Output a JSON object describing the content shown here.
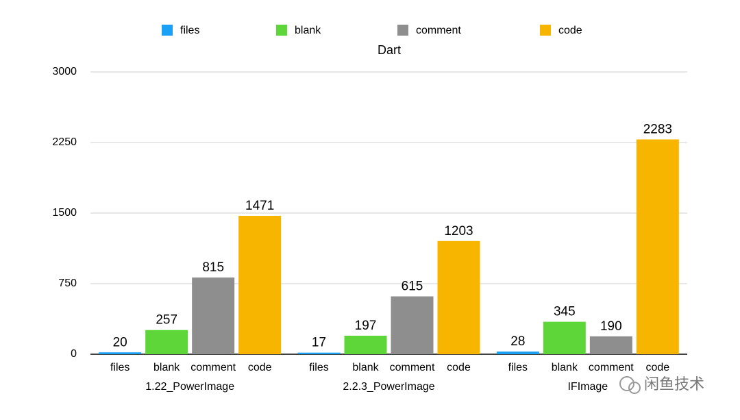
{
  "chart_data": {
    "type": "bar",
    "title": "Dart",
    "categories": [
      "1.22_PowerImage",
      "2.2.3_PowerImage",
      "IFImage"
    ],
    "series": [
      {
        "name": "files",
        "color": "#1aa0f5",
        "values": [
          20,
          17,
          28
        ]
      },
      {
        "name": "blank",
        "color": "#5ed63a",
        "values": [
          257,
          197,
          345
        ]
      },
      {
        "name": "comment",
        "color": "#8e8e8e",
        "values": [
          815,
          615,
          190
        ]
      },
      {
        "name": "code",
        "color": "#f7b500",
        "values": [
          1471,
          1203,
          2283
        ]
      }
    ],
    "ylim": [
      0,
      3000
    ],
    "yticks": [
      0,
      750,
      1500,
      2250,
      3000
    ],
    "grid": true,
    "legend": "top"
  },
  "watermark": "闲鱼技术"
}
